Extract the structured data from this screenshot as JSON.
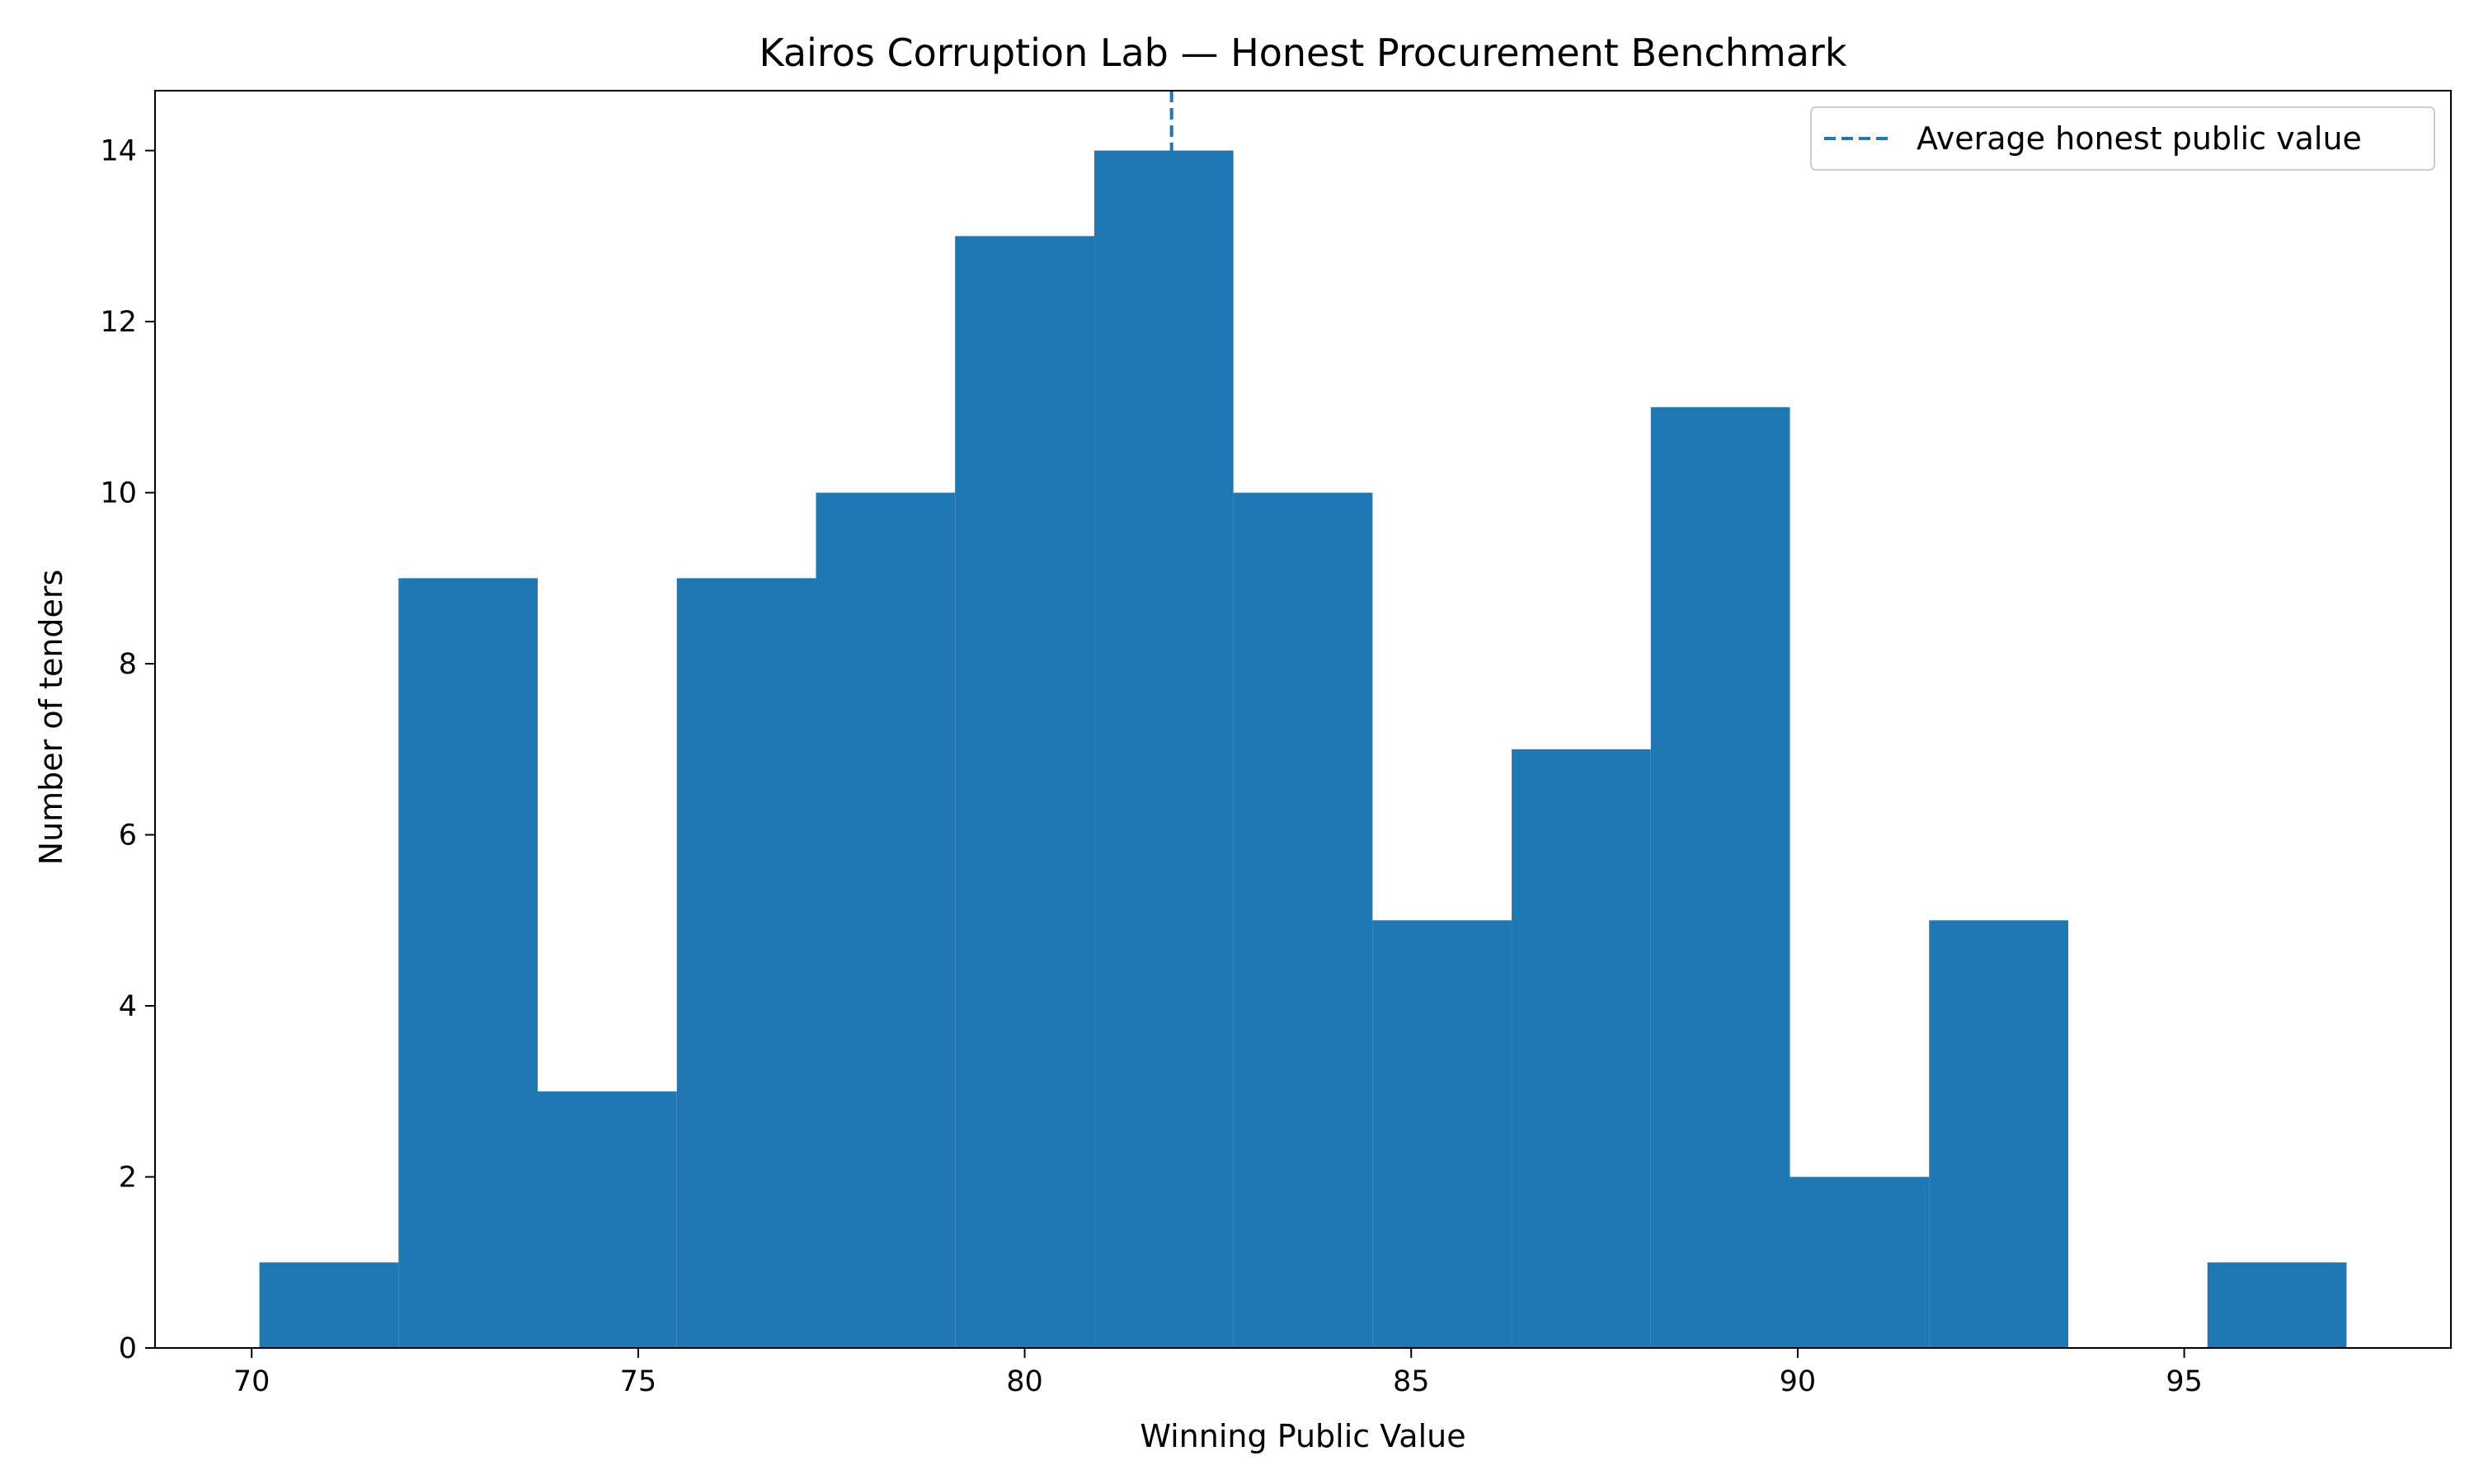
{
  "chart_data": {
    "type": "histogram",
    "title": "Kairos Corruption Lab — Honest Procurement Benchmark",
    "xlabel": "Winning Public Value",
    "ylabel": "Number of tenders",
    "bin_edges": [
      70.1,
      71.9,
      73.7,
      75.5,
      77.3,
      79.1,
      80.9,
      82.7,
      84.5,
      86.3,
      88.1,
      89.9,
      91.7,
      93.5,
      95.3,
      97.1
    ],
    "counts": [
      1,
      9,
      3,
      9,
      10,
      13,
      14,
      10,
      5,
      7,
      11,
      2,
      5,
      0,
      1
    ],
    "bar_color": "#1f77b4",
    "mean_line": {
      "x": 81.9,
      "label": "Average honest public value",
      "color": "#1f77b4",
      "style": "dashed"
    },
    "xlim": [
      68.75,
      98.45
    ],
    "ylim": [
      0,
      14.7
    ],
    "xticks": [
      70,
      75,
      80,
      85,
      90,
      95
    ],
    "yticks": [
      0,
      2,
      4,
      6,
      8,
      10,
      12,
      14
    ],
    "legend_position": "top-right",
    "grid": false
  }
}
